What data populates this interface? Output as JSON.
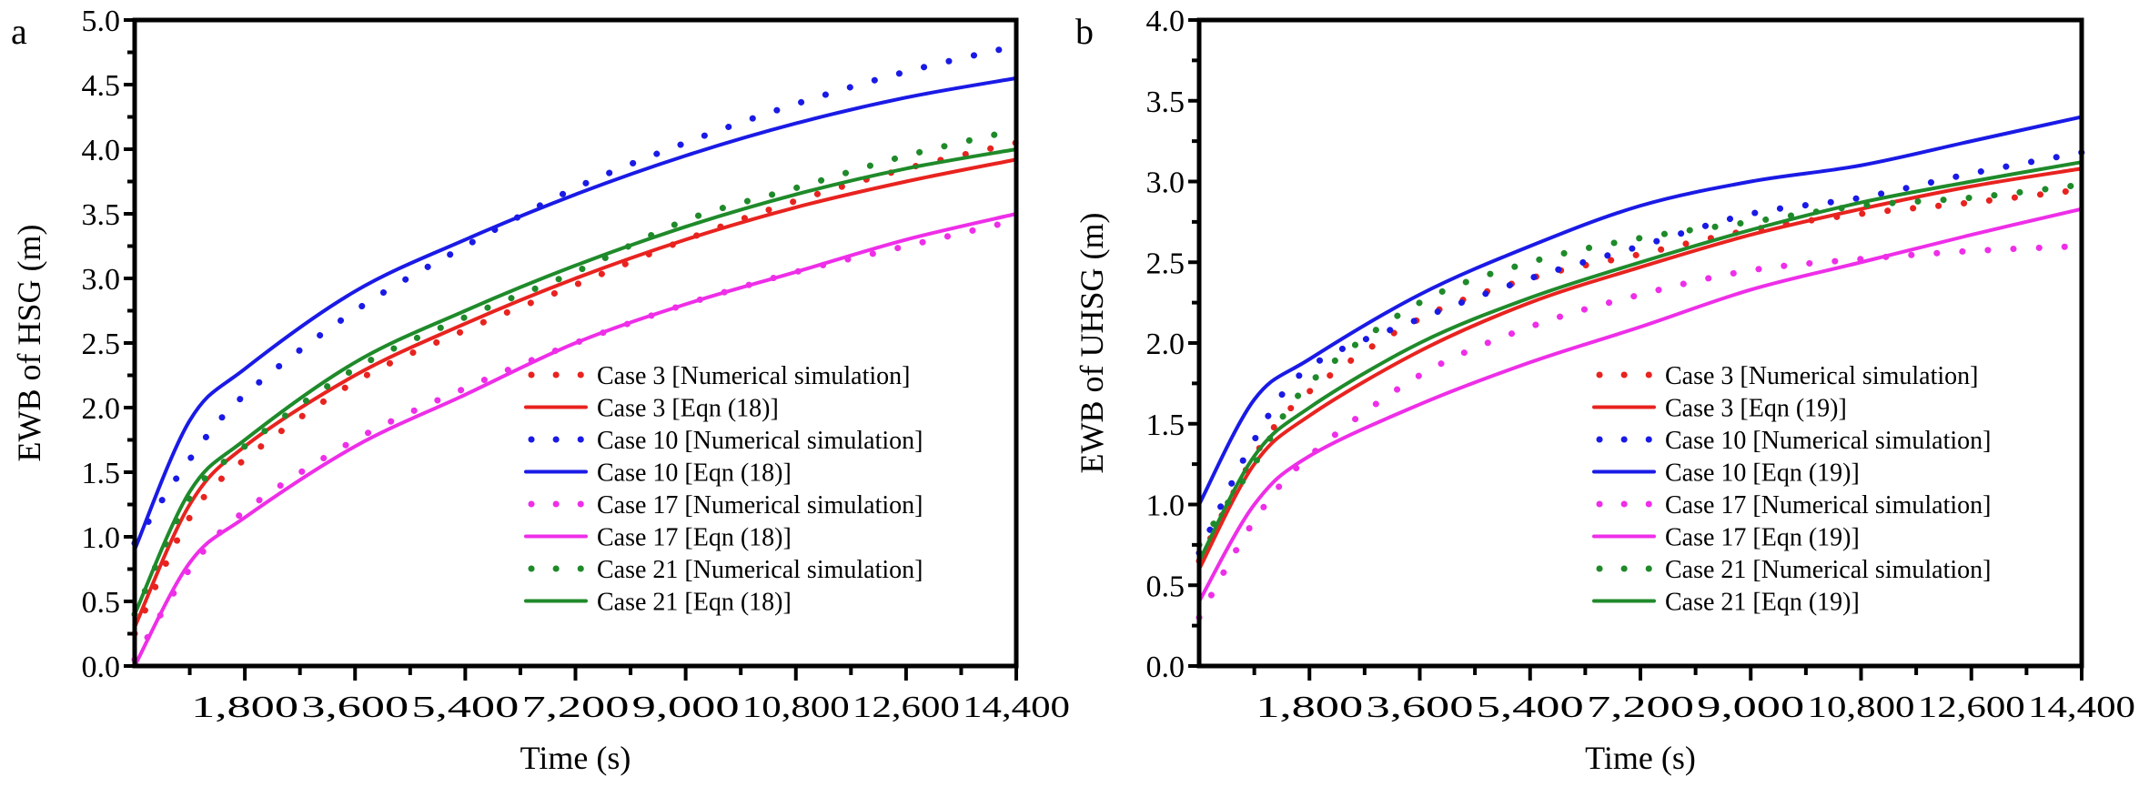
{
  "chart_data": [
    {
      "type": "line",
      "panel": "a",
      "title": "",
      "xlabel": "Time (s)",
      "ylabel": "EWB of HSG (m)",
      "xlim": [
        0,
        14400
      ],
      "ylim": [
        0,
        5.0
      ],
      "xticks": [
        1800,
        3600,
        5400,
        7200,
        9000,
        10800,
        12600,
        14400
      ],
      "xtick_labels": [
        "1,800",
        "3,600",
        "5,400",
        "7,200",
        "9,000",
        "10,800",
        "12,600",
        "14,400"
      ],
      "yticks": [
        0,
        0.5,
        1.0,
        1.5,
        2.0,
        2.5,
        3.0,
        3.5,
        4.0,
        4.5,
        5.0
      ],
      "ytick_labels": [
        "0.0",
        "0.5",
        "1.0",
        "1.5",
        "2.0",
        "2.5",
        "3.0",
        "3.5",
        "4.0",
        "4.5",
        "5.0"
      ],
      "grid": false,
      "legend_position": "lower-right",
      "x": [
        0,
        900,
        1800,
        3600,
        5400,
        7200,
        9000,
        10800,
        12600,
        14400
      ],
      "series": [
        {
          "name": "Case 3 [Numerical simulation]",
          "color": "#e8231f",
          "style": "dotted",
          "values": [
            0.25,
            1.15,
            1.6,
            2.2,
            2.6,
            2.95,
            3.3,
            3.6,
            3.85,
            4.05
          ]
        },
        {
          "name": "Case 3 [Eqn (18)]",
          "color": "#e8231f",
          "style": "solid",
          "values": [
            0.3,
            1.25,
            1.7,
            2.25,
            2.65,
            3.0,
            3.3,
            3.55,
            3.75,
            3.92
          ]
        },
        {
          "name": "Case 10 [Numerical simulation]",
          "color": "#1a1ae6",
          "style": "dotted",
          "values": [
            0.95,
            1.6,
            2.1,
            2.75,
            3.25,
            3.7,
            4.05,
            4.35,
            4.6,
            4.8
          ]
        },
        {
          "name": "Case 10 [Eqn (18)]",
          "color": "#1a1ae6",
          "style": "solid",
          "values": [
            0.9,
            1.9,
            2.3,
            2.9,
            3.3,
            3.65,
            3.95,
            4.2,
            4.4,
            4.55
          ]
        },
        {
          "name": "Case 17 [Numerical simulation]",
          "color": "#ee2ee8",
          "style": "dotted",
          "values": [
            0.05,
            0.75,
            1.2,
            1.75,
            2.15,
            2.5,
            2.8,
            3.05,
            3.25,
            3.45
          ]
        },
        {
          "name": "Case 17 [Eqn (18)]",
          "color": "#ee2ee8",
          "style": "solid",
          "values": [
            0.0,
            0.8,
            1.15,
            1.7,
            2.1,
            2.5,
            2.8,
            3.05,
            3.3,
            3.5
          ]
        },
        {
          "name": "Case 21 [Numerical simulation]",
          "color": "#1f8a2a",
          "style": "dotted",
          "values": [
            0.4,
            1.3,
            1.7,
            2.3,
            2.7,
            3.05,
            3.45,
            3.7,
            3.95,
            4.15
          ]
        },
        {
          "name": "Case 21 [Eqn (18)]",
          "color": "#1f8a2a",
          "style": "solid",
          "values": [
            0.4,
            1.35,
            1.75,
            2.35,
            2.75,
            3.1,
            3.4,
            3.65,
            3.85,
            4.0
          ]
        }
      ]
    },
    {
      "type": "line",
      "panel": "b",
      "title": "",
      "xlabel": "Time (s)",
      "ylabel": "EWB of UHSG (m)",
      "xlim": [
        0,
        14400
      ],
      "ylim": [
        0,
        4.0
      ],
      "xticks": [
        1800,
        3600,
        5400,
        7200,
        9000,
        10800,
        12600,
        14400
      ],
      "xtick_labels": [
        "1,800",
        "3,600",
        "5,400",
        "7,200",
        "9,000",
        "10,800",
        "12,600",
        "14,400"
      ],
      "yticks": [
        0,
        0.5,
        1.0,
        1.5,
        2.0,
        2.5,
        3.0,
        3.5,
        4.0
      ],
      "ytick_labels": [
        "0.0",
        "0.5",
        "1.0",
        "1.5",
        "2.0",
        "2.5",
        "3.0",
        "3.5",
        "4.0"
      ],
      "grid": false,
      "legend_position": "lower-right",
      "x": [
        0,
        900,
        1800,
        3600,
        5400,
        7200,
        9000,
        10800,
        12600,
        14400
      ],
      "series": [
        {
          "name": "Case 3 [Numerical simulation]",
          "color": "#e8231f",
          "style": "dotted",
          "values": [
            0.65,
            1.3,
            1.7,
            2.15,
            2.4,
            2.55,
            2.7,
            2.8,
            2.87,
            2.95
          ]
        },
        {
          "name": "Case 3 [Eqn (19)]",
          "color": "#e8231f",
          "style": "solid",
          "values": [
            0.6,
            1.25,
            1.55,
            1.95,
            2.25,
            2.47,
            2.67,
            2.83,
            2.97,
            3.08
          ]
        },
        {
          "name": "Case 10 [Numerical simulation]",
          "color": "#1a1ae6",
          "style": "dotted",
          "values": [
            0.7,
            1.4,
            1.85,
            2.15,
            2.4,
            2.6,
            2.8,
            2.9,
            3.05,
            3.18
          ]
        },
        {
          "name": "Case 10 [Eqn (19)]",
          "color": "#1a1ae6",
          "style": "solid",
          "values": [
            1.0,
            1.65,
            1.9,
            2.3,
            2.6,
            2.85,
            3.0,
            3.1,
            3.25,
            3.4
          ]
        },
        {
          "name": "Case 17 [Numerical simulation]",
          "color": "#ee2ee8",
          "style": "dotted",
          "values": [
            0.3,
            0.9,
            1.3,
            1.8,
            2.1,
            2.3,
            2.45,
            2.52,
            2.57,
            2.6
          ]
        },
        {
          "name": "Case 17 [Eqn (19)]",
          "color": "#ee2ee8",
          "style": "solid",
          "values": [
            0.4,
            1.0,
            1.3,
            1.62,
            1.88,
            2.1,
            2.33,
            2.5,
            2.67,
            2.83
          ]
        },
        {
          "name": "Case 21 [Numerical simulation]",
          "color": "#1f8a2a",
          "style": "dotted",
          "values": [
            0.75,
            1.25,
            1.75,
            2.25,
            2.5,
            2.65,
            2.75,
            2.85,
            2.9,
            2.98
          ]
        },
        {
          "name": "Case 21 [Eqn (19)]",
          "color": "#1f8a2a",
          "style": "solid",
          "values": [
            0.65,
            1.3,
            1.6,
            2.0,
            2.28,
            2.5,
            2.7,
            2.87,
            3.0,
            3.12
          ]
        }
      ]
    }
  ]
}
